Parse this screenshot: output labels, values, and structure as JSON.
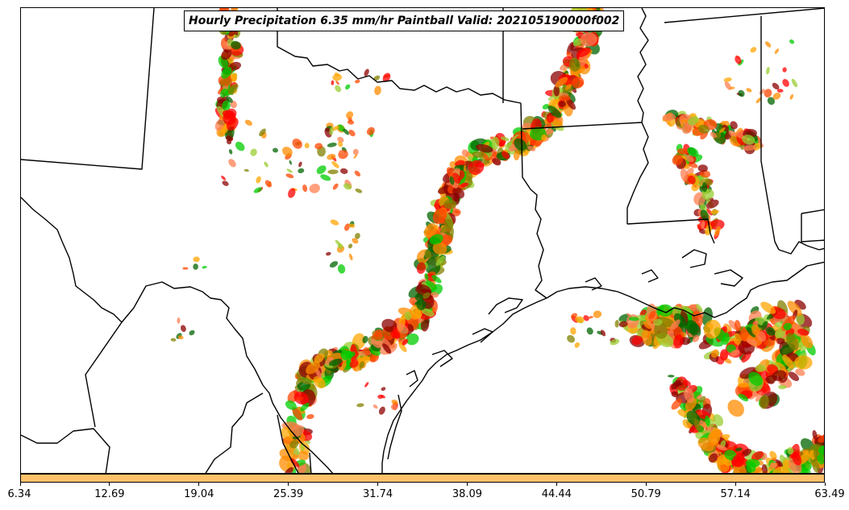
{
  "title": "Hourly Precipitation 6.35 mm/hr Paintball Valid: 202105190000f002",
  "colorbar": {
    "color": "#ffc26b",
    "tick_labels": [
      "6.34",
      "12.69",
      "19.04",
      "25.39",
      "31.74",
      "38.09",
      "44.44",
      "50.79",
      "57.14",
      "63.49"
    ]
  },
  "paintball_colors": [
    "#ff8c00",
    "#ff4500",
    "#ff0000",
    "#8b0000",
    "#00cc00",
    "#006400",
    "#9acd32",
    "#808000",
    "#ff7f50",
    "#ffa500"
  ]
}
